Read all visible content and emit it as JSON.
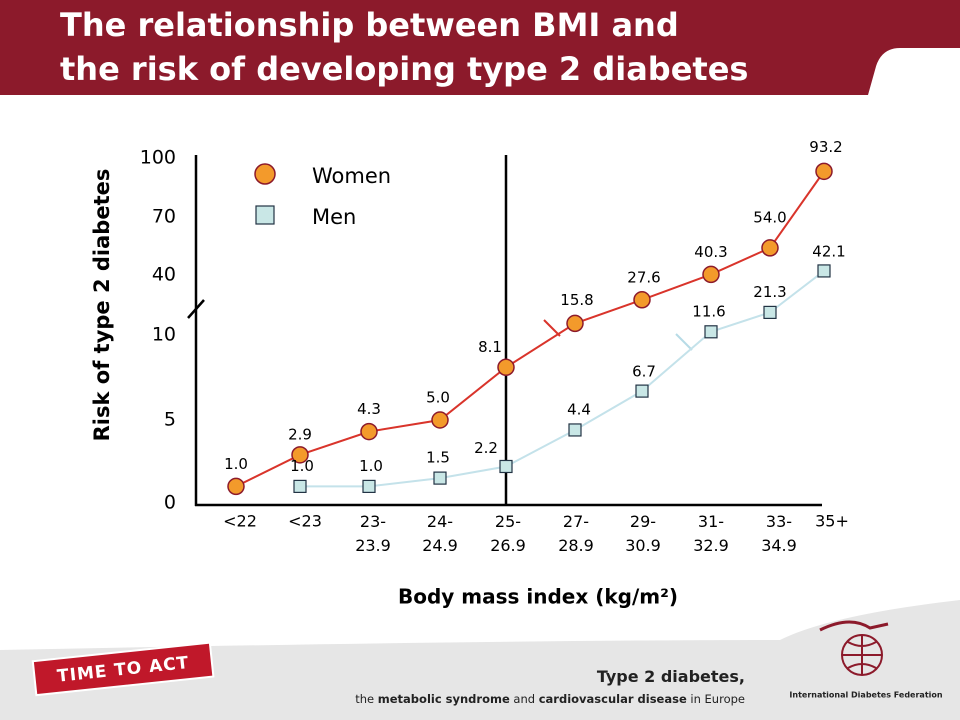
{
  "title": [
    "The relationship between BMI and",
    "the risk of developing type 2 diabetes"
  ],
  "chart_data": {
    "type": "line",
    "ylabel": "Risk of type 2 diabetes",
    "xlabel": "Body mass index (kg/m²)",
    "categories": [
      "<22",
      "<23",
      "23- 23.9",
      "24- 24.9",
      "25- 26.9",
      "27- 28.9",
      "29- 30.9",
      "31- 32.9",
      "33- 34.9",
      "35+"
    ],
    "ylim": [
      0,
      100
    ],
    "yticks": [
      0,
      5,
      10,
      40,
      70,
      100
    ],
    "series": [
      {
        "name": "Women",
        "color": "#f39a2b",
        "line_color": "#d9342b",
        "marker": "circle",
        "values": [
          1.0,
          2.9,
          4.3,
          5.0,
          8.1,
          15.8,
          27.6,
          40.3,
          54.0,
          93.2
        ],
        "value_labels": [
          "1.0",
          "2.9",
          "4.3",
          "5.0",
          "8.1",
          "15.8",
          "27.6",
          "40.3",
          "54.0",
          "93.2"
        ]
      },
      {
        "name": "Men",
        "color": "#c9e7e6",
        "line_color": "#c4e2ea",
        "marker": "square",
        "values": [
          null,
          1.0,
          1.0,
          1.5,
          2.2,
          4.4,
          6.7,
          11.6,
          21.3,
          42.1
        ],
        "value_labels": [
          null,
          "1.0",
          "1.0",
          "1.5",
          "2.2",
          "4.4",
          "6.7",
          "11.6",
          "21.3",
          "42.1"
        ]
      }
    ]
  },
  "badge": "TIME TO ACT",
  "footer": {
    "line1": "Type 2 diabetes,",
    "line2": [
      {
        "text": "the ",
        "bold": false
      },
      {
        "text": "metabolic syndrome",
        "bold": true
      },
      {
        "text": " and ",
        "bold": false
      },
      {
        "text": "cardiovascular disease",
        "bold": true
      },
      {
        "text": " in Europe",
        "bold": false
      }
    ],
    "org": "International Diabetes Federation"
  }
}
